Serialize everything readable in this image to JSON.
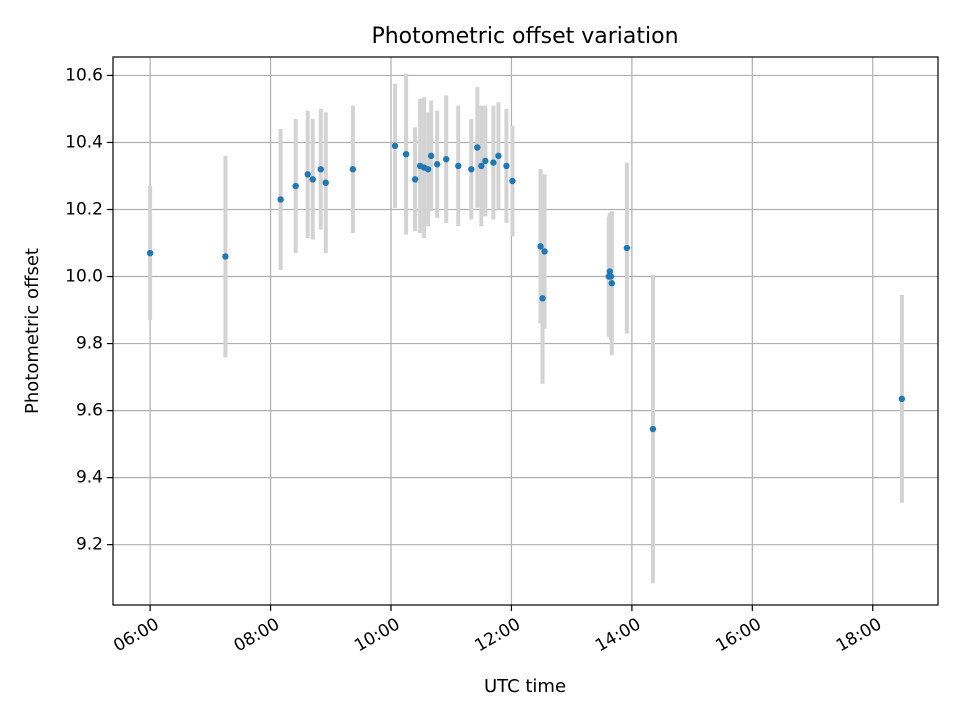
{
  "chart_data": {
    "type": "scatter",
    "title": "Photometric offset variation",
    "xlabel": "UTC time",
    "ylabel": "Photometric offset",
    "xlim": [
      "05:23",
      "19:05"
    ],
    "ylim": [
      9.02,
      10.655
    ],
    "grid": true,
    "x_ticks": [
      "06:00",
      "08:00",
      "10:00",
      "12:00",
      "14:00",
      "16:00",
      "18:00"
    ],
    "y_ticks": [
      9.2,
      9.4,
      9.6,
      9.8,
      10.0,
      10.2,
      10.4,
      10.6
    ],
    "y_tick_labels": [
      "9.2",
      "9.4",
      "9.6",
      "9.8",
      "10.0",
      "10.2",
      "10.4",
      "10.6"
    ],
    "marker_color": "#1f77b4",
    "errorbar_color": "#d3d3d3",
    "points": [
      {
        "time": "06:00",
        "y": 10.07,
        "yerr": 0.2
      },
      {
        "time": "07:15",
        "y": 10.06,
        "yerr": 0.3
      },
      {
        "time": "08:10",
        "y": 10.23,
        "yerr": 0.21
      },
      {
        "time": "08:25",
        "y": 10.27,
        "yerr": 0.2
      },
      {
        "time": "08:37",
        "y": 10.305,
        "yerr": 0.19
      },
      {
        "time": "08:42",
        "y": 10.29,
        "yerr": 0.18
      },
      {
        "time": "08:50",
        "y": 10.32,
        "yerr": 0.18
      },
      {
        "time": "08:55",
        "y": 10.28,
        "yerr": 0.21
      },
      {
        "time": "09:22",
        "y": 10.32,
        "yerr": 0.19
      },
      {
        "time": "10:04",
        "y": 10.39,
        "yerr": 0.185
      },
      {
        "time": "10:15",
        "y": 10.365,
        "yerr": 0.24
      },
      {
        "time": "10:24",
        "y": 10.29,
        "yerr": 0.155
      },
      {
        "time": "10:29",
        "y": 10.33,
        "yerr": 0.2
      },
      {
        "time": "10:33",
        "y": 10.325,
        "yerr": 0.21
      },
      {
        "time": "10:37",
        "y": 10.32,
        "yerr": 0.17
      },
      {
        "time": "10:40",
        "y": 10.36,
        "yerr": 0.165
      },
      {
        "time": "10:46",
        "y": 10.335,
        "yerr": 0.16
      },
      {
        "time": "10:55",
        "y": 10.35,
        "yerr": 0.19
      },
      {
        "time": "11:07",
        "y": 10.33,
        "yerr": 0.18
      },
      {
        "time": "11:20",
        "y": 10.32,
        "yerr": 0.15
      },
      {
        "time": "11:26",
        "y": 10.385,
        "yerr": 0.18
      },
      {
        "time": "11:30",
        "y": 10.33,
        "yerr": 0.18
      },
      {
        "time": "11:34",
        "y": 10.345,
        "yerr": 0.165
      },
      {
        "time": "11:42",
        "y": 10.34,
        "yerr": 0.17
      },
      {
        "time": "11:47",
        "y": 10.36,
        "yerr": 0.16
      },
      {
        "time": "11:55",
        "y": 10.33,
        "yerr": 0.17
      },
      {
        "time": "12:01",
        "y": 10.285,
        "yerr": 0.165
      },
      {
        "time": "12:29",
        "y": 10.09,
        "yerr": 0.23
      },
      {
        "time": "12:31",
        "y": 9.935,
        "yerr": 0.255
      },
      {
        "time": "12:33",
        "y": 10.075,
        "yerr": 0.23
      },
      {
        "time": "13:37",
        "y": 10.0,
        "yerr": 0.18
      },
      {
        "time": "13:38",
        "y": 10.015,
        "yerr": 0.175
      },
      {
        "time": "13:39",
        "y": 10.0,
        "yerr": 0.19
      },
      {
        "time": "13:40",
        "y": 9.98,
        "yerr": 0.215
      },
      {
        "time": "13:55",
        "y": 10.085,
        "yerr": 0.255
      },
      {
        "time": "14:21",
        "y": 9.545,
        "yerr": 0.46
      },
      {
        "time": "18:29",
        "y": 9.635,
        "yerr": 0.31
      }
    ]
  }
}
